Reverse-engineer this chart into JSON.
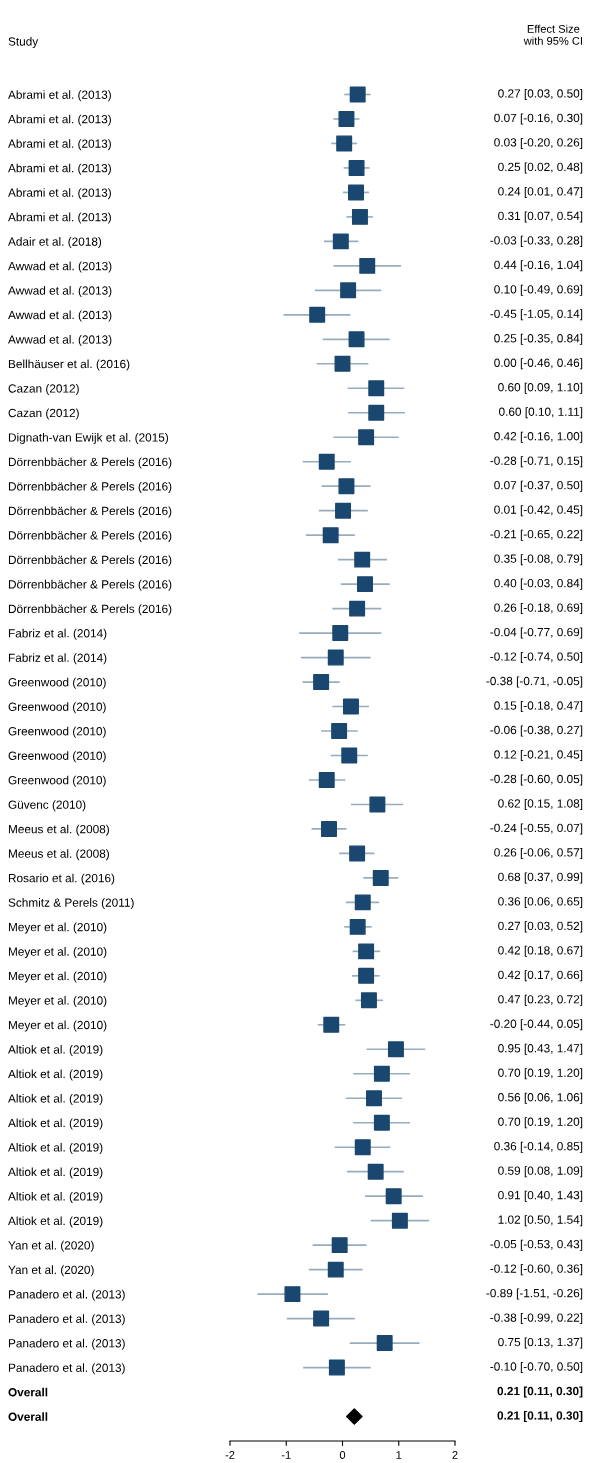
{
  "chart_data": {
    "type": "scatter",
    "orientation": "horizontal",
    "ylabel": "Study",
    "annotations": [
      "Effect Size\nwith 95% CI"
    ],
    "categories": [
      "Abrami et al. (2013)",
      "Abrami et al. (2013)",
      "Abrami et al. (2013)",
      "Abrami et al. (2013)",
      "Abrami et al. (2013)",
      "Abrami et al. (2013)",
      "Adair et al. (2018)",
      "Awwad et al. (2013)",
      "Awwad et al. (2013)",
      "Awwad et al. (2013)",
      "Awwad et al. (2013)",
      "Bellhäuser et al. (2016)",
      "Cazan (2012)",
      "Cazan (2012)",
      "Dignath-van Ewijk et al. (2015)",
      "Dörrenbbächer & Perels (2016)",
      "Dörrenbbächer & Perels (2016)",
      "Dörrenbbächer & Perels (2016)",
      "Dörrenbbächer & Perels (2016)",
      "Dörrenbbächer & Perels (2016)",
      "Dörrenbbächer & Perels (2016)",
      "Dörrenbbächer & Perels (2016)",
      "Fabriz et al. (2014)",
      "Fabriz et al. (2014)",
      "Greenwood (2010)",
      "Greenwood (2010)",
      "Greenwood (2010)",
      "Greenwood (2010)",
      "Greenwood (2010)",
      "Güvenc (2010)",
      "Meeus et al. (2008)",
      "Meeus et al. (2008)",
      "Rosario et al. (2016)",
      "Schmitz & Perels (2011)",
      "Meyer et al. (2010)",
      "Meyer et al. (2010)",
      "Meyer et al. (2010)",
      "Meyer et al. (2010)",
      "Meyer et al. (2010)",
      "Altiok et al. (2019)",
      "Altiok et al. (2019)",
      "Altiok et al. (2019)",
      "Altiok et al. (2019)",
      "Altiok et al. (2019)",
      "Altiok et al. (2019)",
      "Altiok et al. (2019)",
      "Altiok et al. (2019)",
      "Yan et al. (2020)",
      "Yan et al. (2020)",
      "Panadero et al. (2013)",
      "Panadero et al. (2013)",
      "Panadero et al. (2013)",
      "Panadero et al. (2013)",
      "Overall",
      "Overall"
    ],
    "series": [
      {
        "color": "#1a476f",
        "marker": "square",
        "values": [
          0.27,
          0.07,
          0.03,
          0.25,
          0.24,
          0.31,
          -0.03,
          0.44,
          0.1,
          -0.45,
          0.25,
          0.0,
          0.6,
          0.6,
          0.42,
          -0.28,
          0.07,
          0.01,
          -0.21,
          0.35,
          0.4,
          0.26,
          -0.04,
          -0.12,
          -0.38,
          0.15,
          -0.06,
          0.12,
          -0.28,
          0.62,
          -0.24,
          0.26,
          0.68,
          0.36,
          0.27,
          0.42,
          0.42,
          0.47,
          -0.2,
          0.95,
          0.7,
          0.56,
          0.7,
          0.36,
          0.59,
          0.91,
          1.02,
          -0.05,
          -0.12,
          -0.89,
          -0.38,
          0.75,
          -0.1,
          null,
          null
        ],
        "errors": [
          [
            0.03,
            0.5
          ],
          [
            -0.16,
            0.3
          ],
          [
            -0.2,
            0.26
          ],
          [
            0.02,
            0.48
          ],
          [
            0.01,
            0.47
          ],
          [
            0.07,
            0.54
          ],
          [
            -0.33,
            0.28
          ],
          [
            -0.16,
            1.04
          ],
          [
            -0.49,
            0.69
          ],
          [
            -1.05,
            0.14
          ],
          [
            -0.35,
            0.84
          ],
          [
            -0.46,
            0.46
          ],
          [
            0.09,
            1.1
          ],
          [
            0.1,
            1.11
          ],
          [
            -0.16,
            1.0
          ],
          [
            -0.71,
            0.15
          ],
          [
            -0.37,
            0.5
          ],
          [
            -0.42,
            0.45
          ],
          [
            -0.65,
            0.22
          ],
          [
            -0.08,
            0.79
          ],
          [
            -0.03,
            0.84
          ],
          [
            -0.18,
            0.69
          ],
          [
            -0.77,
            0.69
          ],
          [
            -0.74,
            0.5
          ],
          [
            -0.71,
            -0.05
          ],
          [
            -0.18,
            0.47
          ],
          [
            -0.38,
            0.27
          ],
          [
            -0.21,
            0.45
          ],
          [
            -0.6,
            0.05
          ],
          [
            0.15,
            1.08
          ],
          [
            -0.55,
            0.07
          ],
          [
            -0.06,
            0.57
          ],
          [
            0.37,
            0.99
          ],
          [
            0.06,
            0.65
          ],
          [
            0.03,
            0.52
          ],
          [
            0.18,
            0.67
          ],
          [
            0.17,
            0.66
          ],
          [
            0.23,
            0.72
          ],
          [
            -0.44,
            0.05
          ],
          [
            0.43,
            1.47
          ],
          [
            0.19,
            1.2
          ],
          [
            0.06,
            1.06
          ],
          [
            0.19,
            1.2
          ],
          [
            -0.14,
            0.85
          ],
          [
            0.08,
            1.09
          ],
          [
            0.4,
            1.43
          ],
          [
            0.5,
            1.54
          ],
          [
            -0.53,
            0.43
          ],
          [
            -0.6,
            0.36
          ],
          [
            -1.51,
            -0.26
          ],
          [
            -0.99,
            0.22
          ],
          [
            0.13,
            1.37
          ],
          [
            -0.7,
            0.5
          ],
          null,
          null
        ]
      },
      {
        "color": "#000000",
        "marker": "diamond",
        "values": [
          null,
          null,
          null,
          null,
          null,
          null,
          null,
          null,
          null,
          null,
          null,
          null,
          null,
          null,
          null,
          null,
          null,
          null,
          null,
          null,
          null,
          null,
          null,
          null,
          null,
          null,
          null,
          null,
          null,
          null,
          null,
          null,
          null,
          null,
          null,
          null,
          null,
          null,
          null,
          null,
          null,
          null,
          null,
          null,
          null,
          null,
          null,
          null,
          null,
          null,
          null,
          null,
          null,
          null,
          0.21
        ],
        "errors": [
          null,
          null,
          null,
          null,
          null,
          null,
          null,
          null,
          null,
          null,
          null,
          null,
          null,
          null,
          null,
          null,
          null,
          null,
          null,
          null,
          null,
          null,
          null,
          null,
          null,
          null,
          null,
          null,
          null,
          null,
          null,
          null,
          null,
          null,
          null,
          null,
          null,
          null,
          null,
          null,
          null,
          null,
          null,
          null,
          null,
          null,
          null,
          null,
          null,
          null,
          null,
          null,
          null,
          null,
          [
            0.11,
            0.3
          ]
        ]
      }
    ],
    "value_labels": [
      "0.27 [0.03, 0.50]",
      "0.07 [-0.16, 0.30]",
      "0.03 [-0.20, 0.26]",
      "0.25 [0.02, 0.48]",
      "0.24 [0.01, 0.47]",
      "0.31 [0.07, 0.54]",
      "-0.03 [-0.33, 0.28]",
      "0.44 [-0.16, 1.04]",
      "0.10 [-0.49, 0.69]",
      "-0.45 [-1.05, 0.14]",
      "0.25 [-0.35, 0.84]",
      "0.00 [-0.46, 0.46]",
      "0.60 [0.09, 1.10]",
      "0.60 [0.10, 1.11]",
      "0.42 [-0.16, 1.00]",
      "-0.28 [-0.71, 0.15]",
      "0.07 [-0.37, 0.50]",
      "0.01 [-0.42, 0.45]",
      "-0.21 [-0.65, 0.22]",
      "0.35 [-0.08, 0.79]",
      "0.40 [-0.03, 0.84]",
      "0.26 [-0.18, 0.69]",
      "-0.04 [-0.77, 0.69]",
      "-0.12 [-0.74, 0.50]",
      "-0.38 [-0.71, -0.05]",
      "0.15 [-0.18, 0.47]",
      "-0.06 [-0.38, 0.27]",
      "0.12 [-0.21, 0.45]",
      "-0.28 [-0.60, 0.05]",
      "0.62 [0.15, 1.08]",
      "-0.24 [-0.55, 0.07]",
      "0.26 [-0.06, 0.57]",
      "0.68 [0.37, 0.99]",
      "0.36 [0.06, 0.65]",
      "0.27 [0.03, 0.52]",
      "0.42 [0.18, 0.67]",
      "0.42 [0.17, 0.66]",
      "0.47 [0.23, 0.72]",
      "-0.20 [-0.44, 0.05]",
      "0.95 [0.43, 1.47]",
      "0.70 [0.19, 1.20]",
      "0.56 [0.06, 1.06]",
      "0.70 [0.19, 1.20]",
      "0.36 [-0.14, 0.85]",
      "0.59 [0.08, 1.09]",
      "0.91 [0.40, 1.43]",
      "1.02 [0.50, 1.54]",
      "-0.05 [-0.53, 0.43]",
      "-0.12 [-0.60, 0.36]",
      "-0.89 [-1.51, -0.26]",
      "-0.38 [-0.99, 0.22]",
      "0.75 [0.13, 1.37]",
      "-0.10 [-0.70, 0.50]",
      "0.21 [0.11, 0.30]",
      "0.21 [0.11, 0.30]"
    ],
    "xlim": [
      -2,
      2
    ],
    "xticks": [
      -2,
      -1,
      0,
      1,
      2
    ]
  }
}
